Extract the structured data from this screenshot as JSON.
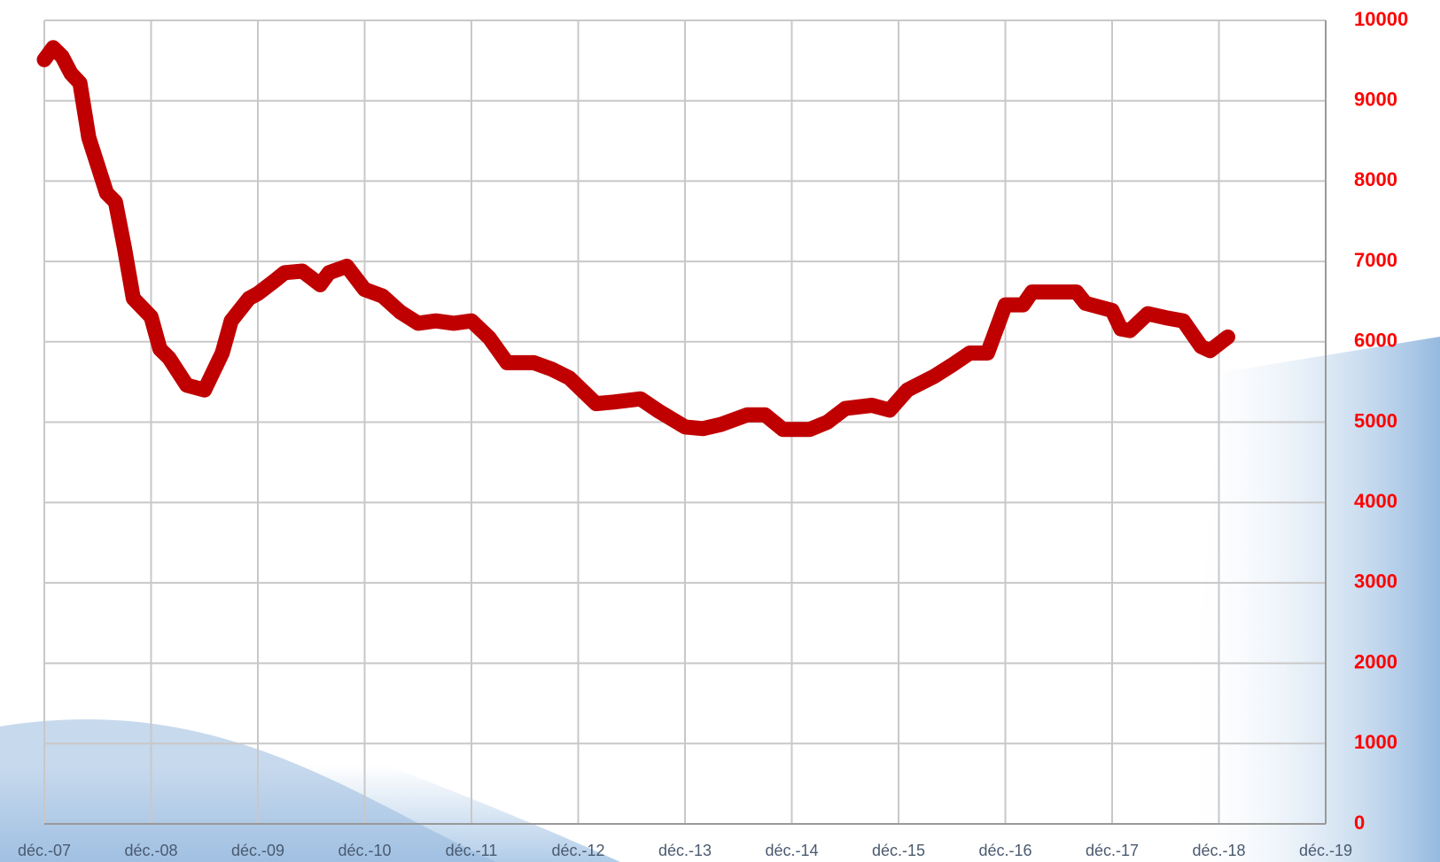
{
  "chart_data": {
    "type": "line",
    "x": [
      0,
      1,
      2,
      3,
      4,
      5,
      7,
      8,
      9,
      10,
      12,
      13,
      14,
      16,
      18,
      20,
      21,
      23,
      24,
      26,
      27,
      29,
      31,
      32,
      34,
      36,
      38,
      40,
      42,
      44,
      46,
      48,
      50,
      52,
      55,
      57,
      59,
      62,
      64,
      67,
      69,
      72,
      74,
      76,
      79,
      81,
      83,
      86,
      88,
      90,
      93,
      95,
      97,
      100,
      102,
      104,
      106,
      108,
      110,
      111,
      113,
      116,
      117,
      120,
      121,
      122,
      124,
      126,
      128,
      130,
      131,
      133
    ],
    "series": [
      {
        "name": null,
        "color": "#c00000",
        "values": [
          9510,
          9660,
          9550,
          9340,
          9220,
          8540,
          7850,
          7740,
          7170,
          6540,
          6310,
          5910,
          5800,
          5460,
          5400,
          5860,
          6260,
          6540,
          6600,
          6770,
          6860,
          6880,
          6710,
          6860,
          6940,
          6650,
          6570,
          6370,
          6230,
          6260,
          6230,
          6260,
          6050,
          5740,
          5740,
          5660,
          5550,
          5230,
          5250,
          5290,
          5140,
          4940,
          4920,
          4970,
          5090,
          5090,
          4910,
          4910,
          5000,
          5170,
          5210,
          5150,
          5400,
          5570,
          5710,
          5860,
          5860,
          6460,
          6460,
          6620,
          6620,
          6620,
          6480,
          6390,
          6160,
          6140,
          6350,
          6300,
          6260,
          5940,
          5890,
          6060
        ]
      }
    ],
    "xlim": [
      0,
      144
    ],
    "xticks": [
      {
        "value": 0,
        "label": "déc.-07"
      },
      {
        "value": 12,
        "label": "déc.-08"
      },
      {
        "value": 24,
        "label": "déc.-09"
      },
      {
        "value": 36,
        "label": "déc.-10"
      },
      {
        "value": 48,
        "label": "déc.-11"
      },
      {
        "value": 60,
        "label": "déc.-12"
      },
      {
        "value": 72,
        "label": "déc.-13"
      },
      {
        "value": 84,
        "label": "déc.-14"
      },
      {
        "value": 96,
        "label": "déc.-15"
      },
      {
        "value": 108,
        "label": "déc.-16"
      },
      {
        "value": 120,
        "label": "déc.-17"
      },
      {
        "value": 132,
        "label": "déc.-18"
      },
      {
        "value": 144,
        "label": "déc.-19"
      }
    ],
    "ylim": [
      0,
      10000
    ],
    "yticks": [
      0,
      1000,
      2000,
      3000,
      4000,
      5000,
      6000,
      7000,
      8000,
      9000,
      10000
    ],
    "grid": true,
    "y_axis_side": "right"
  }
}
